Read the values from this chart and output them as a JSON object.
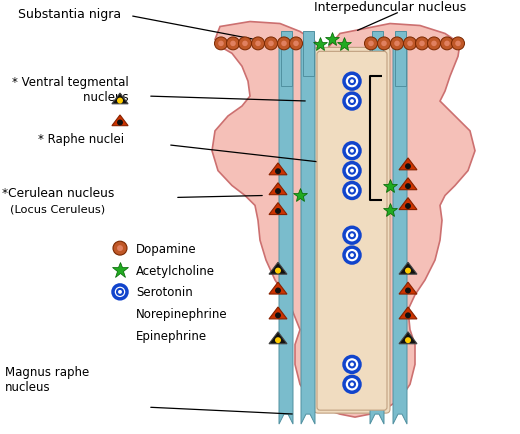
{
  "bg_color": "#ffffff",
  "figsize": [
    5.2,
    4.35
  ],
  "dpi": 100,
  "colors": {
    "brainstem_fill": "#f5c0b8",
    "brainstem_outline": "#cc7070",
    "tract_fill": "#7abccc",
    "tract_edge": "#5090a0",
    "inner_fill": "#f0dcc0",
    "inner_edge": "#c0a080",
    "dopamine": "#c05828",
    "dopamine_inner": "#e08060",
    "ach_green": "#22aa22",
    "serotonin": "#1144cc",
    "norepi": "#cc3300",
    "norepi_edge": "#882200",
    "norepi_dot": "#111111",
    "epi": "#111111",
    "epi_center": "#ffcc00"
  },
  "labels": {
    "substantia_nigra": "Substantia nigra",
    "interpeduncular": "Interpeduncular nucleus",
    "ventral_tegmental": "* Ventral tegmental\n        nucleus",
    "raphe_nuclei": "* Raphe nuclei",
    "cerulean": "*Cerulean nucleus",
    "locus_ceruleus": "(Locus Ceruleus)",
    "magnus_raphe": "Magnus raphe\nnucleus",
    "dopamine_lbl": "Dopamine",
    "ach_lbl": "Acetylcholine",
    "serotonin_lbl": "Serotonin",
    "norepi_lbl": "Norepinephrine",
    "epi_lbl": "Epinephrine"
  }
}
